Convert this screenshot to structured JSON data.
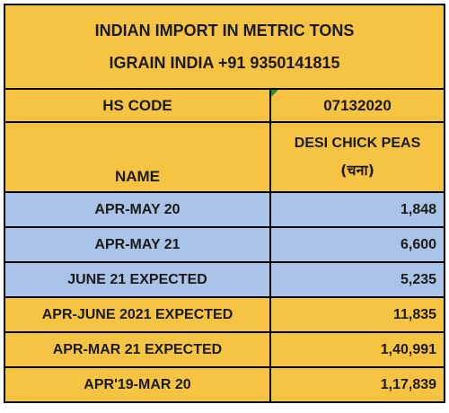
{
  "title": {
    "line1": "INDIAN IMPORT IN METRIC TONS",
    "line2": "IGRAIN INDIA +91 9350141815"
  },
  "hs_code": {
    "label": "HS CODE",
    "value": "07132020"
  },
  "name": {
    "label": "NAME",
    "value_line1": "DESI CHICK PEAS",
    "value_line2": "(चना)"
  },
  "rows": [
    {
      "label": "APR-MAY 20",
      "value": "1,848",
      "color": "#a9c4e6"
    },
    {
      "label": "APR-MAY 21",
      "value": "6,600",
      "color": "#a9c4e6"
    },
    {
      "label": "JUNE 21 EXPECTED",
      "value": "5,235",
      "color": "#a9c4e6"
    },
    {
      "label": "APR-JUNE 2021 EXPECTED",
      "value": "11,835",
      "color": "#f7c343"
    },
    {
      "label": "APR-MAR 21 EXPECTED",
      "value": "1,40,991",
      "color": "#f7c343"
    },
    {
      "label": "APR'19-MAR 20",
      "value": "1,17,839",
      "color": "#f7c343"
    }
  ],
  "colors": {
    "header_yellow": "#f7c343",
    "row_blue": "#a9c4e6"
  }
}
